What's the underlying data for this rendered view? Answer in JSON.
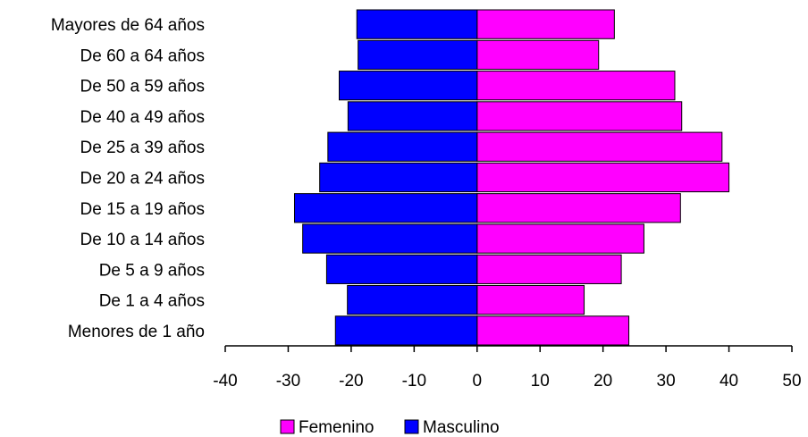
{
  "chart_data": {
    "type": "bar",
    "orientation": "horizontal",
    "stacked": "diverging",
    "categories": [
      "Menores de 1 año",
      "De 1 a 4 años",
      "De 5 a 9 años",
      "De 10 a 14 años",
      "De 15 a 19 años",
      "De 20 a 24 años",
      "De 25 a 39 años",
      "De 40 a 49 años",
      "De 50 a 59 años",
      "De 60 a 64 años",
      "Mayores de 64 años"
    ],
    "series": [
      {
        "name": "Femenino",
        "color": "#ff00ff",
        "values": [
          24.1,
          17.0,
          22.9,
          26.5,
          32.3,
          40.0,
          38.9,
          32.5,
          31.4,
          19.3,
          21.8
        ]
      },
      {
        "name": "Masculino",
        "color": "#0000ff",
        "values": [
          -22.5,
          -20.6,
          -23.9,
          -27.7,
          -29.0,
          -25.0,
          -23.7,
          -20.5,
          -21.9,
          -18.9,
          -19.1
        ]
      }
    ],
    "xlim": [
      -40,
      50
    ],
    "xticks": [
      "-40",
      "-30",
      "-20",
      "-10",
      "0",
      "10",
      "20",
      "30",
      "40",
      "50"
    ],
    "grid": false,
    "legend_position": "bottom"
  }
}
